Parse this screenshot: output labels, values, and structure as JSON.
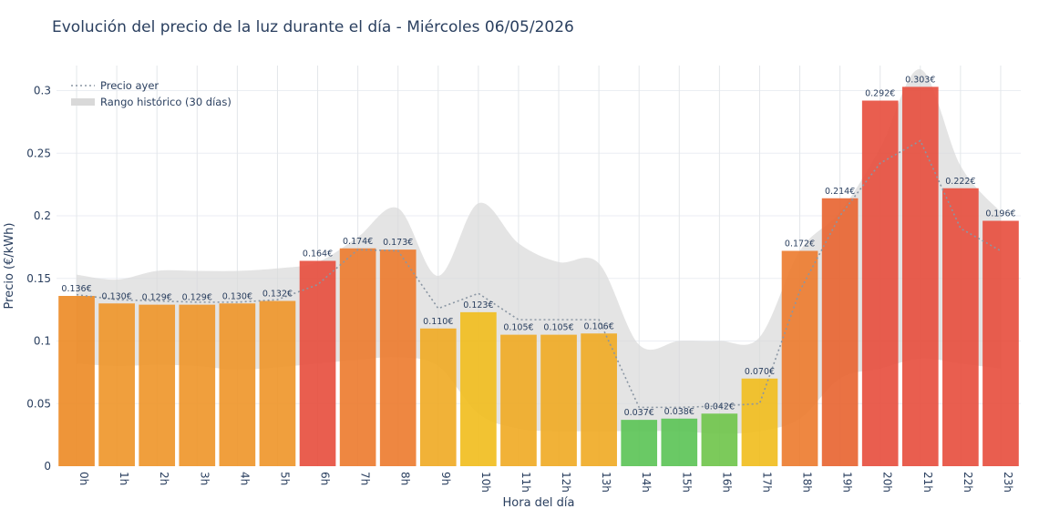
{
  "title": "Evolución del precio de la luz durante el día - Miércoles 06/05/2026",
  "chart_data": {
    "type": "bar",
    "title": "Evolución del precio de la luz durante el día - Miércoles 06/05/2026",
    "xlabel": "Hora del día",
    "ylabel": "Precio (€/kWh)",
    "ylim": [
      0,
      0.32
    ],
    "yticks": [
      0,
      0.05,
      0.1,
      0.15,
      0.2,
      0.25,
      0.3
    ],
    "ytick_labels": [
      "0",
      "0.05",
      "0.1",
      "0.15",
      "0.2",
      "0.25",
      "0.3"
    ],
    "grid": true,
    "legend_position": "top-left",
    "categories": [
      "0h",
      "1h",
      "2h",
      "3h",
      "4h",
      "5h",
      "6h",
      "7h",
      "8h",
      "9h",
      "10h",
      "11h",
      "12h",
      "13h",
      "14h",
      "15h",
      "16h",
      "17h",
      "18h",
      "19h",
      "20h",
      "21h",
      "22h",
      "23h"
    ],
    "values": [
      0.136,
      0.13,
      0.129,
      0.129,
      0.13,
      0.132,
      0.164,
      0.174,
      0.173,
      0.11,
      0.123,
      0.105,
      0.105,
      0.106,
      0.037,
      0.038,
      0.042,
      0.07,
      0.172,
      0.214,
      0.292,
      0.303,
      0.222,
      0.196
    ],
    "value_labels": [
      "0.136€",
      "0.130€",
      "0.129€",
      "0.129€",
      "0.130€",
      "0.132€",
      "0.164€",
      "0.174€",
      "0.173€",
      "0.110€",
      "0.123€",
      "0.105€",
      "0.105€",
      "0.106€",
      "0.037€",
      "0.038€",
      "0.042€",
      "0.070€",
      "0.172€",
      "0.214€",
      "0.292€",
      "0.303€",
      "0.222€",
      "0.196€"
    ],
    "bar_colors": [
      "#ec8a24",
      "#ee9528",
      "#ee9528",
      "#ee9528",
      "#ee9528",
      "#ee9528",
      "#e74c3c",
      "#ec7a2c",
      "#ec7a2c",
      "#efaa22",
      "#f1bd1c",
      "#efaa22",
      "#efaa22",
      "#efaa22",
      "#5ac354",
      "#5ac354",
      "#6ec449",
      "#f1bd1c",
      "#ec7a2c",
      "#e8632f",
      "#e74c3c",
      "#e74c3c",
      "#e74c3c",
      "#e74c3c"
    ],
    "series": [
      {
        "name": "Precio ayer",
        "type": "line",
        "style": "dotted",
        "color": "#8a96a3",
        "values": [
          0.137,
          0.133,
          0.132,
          0.131,
          0.131,
          0.133,
          0.145,
          0.173,
          0.172,
          0.126,
          0.138,
          0.117,
          0.117,
          0.117,
          0.047,
          0.047,
          0.048,
          0.05,
          0.14,
          0.2,
          0.242,
          0.26,
          0.19,
          0.172
        ]
      },
      {
        "name": "Rango histórico (30 días)",
        "type": "band",
        "color": "#d9d9d9",
        "upper": [
          0.153,
          0.149,
          0.156,
          0.156,
          0.156,
          0.158,
          0.163,
          0.183,
          0.206,
          0.152,
          0.21,
          0.178,
          0.163,
          0.162,
          0.097,
          0.1,
          0.1,
          0.103,
          0.172,
          0.203,
          0.254,
          0.317,
          0.24,
          0.203
        ],
        "lower": [
          0.082,
          0.08,
          0.081,
          0.08,
          0.077,
          0.079,
          0.082,
          0.085,
          0.087,
          0.08,
          0.042,
          0.03,
          0.028,
          0.028,
          0.028,
          0.028,
          0.026,
          0.028,
          0.038,
          0.07,
          0.078,
          0.086,
          0.082,
          0.078
        ]
      }
    ]
  }
}
